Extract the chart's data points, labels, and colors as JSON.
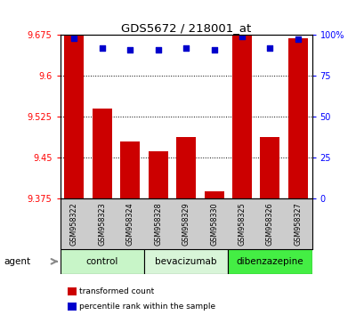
{
  "title": "GDS5672 / 218001_at",
  "samples": [
    "GSM958322",
    "GSM958323",
    "GSM958324",
    "GSM958328",
    "GSM958329",
    "GSM958330",
    "GSM958325",
    "GSM958326",
    "GSM958327"
  ],
  "bar_values": [
    9.675,
    9.54,
    9.48,
    9.462,
    9.487,
    9.388,
    9.678,
    9.487,
    9.668
  ],
  "blue_values": [
    98,
    92,
    91,
    91,
    92,
    91,
    99,
    92,
    97
  ],
  "y_min": 9.375,
  "y_max": 9.675,
  "y_ticks": [
    9.375,
    9.45,
    9.525,
    9.6,
    9.675
  ],
  "y_tick_labels": [
    "9.375",
    "9.45",
    "9.525",
    "9.6",
    "9.675"
  ],
  "right_y_ticks": [
    0,
    25,
    50,
    75,
    100
  ],
  "right_y_tick_labels": [
    "0",
    "25",
    "50",
    "75",
    "100%"
  ],
  "groups": [
    {
      "label": "control",
      "start": 0,
      "end": 3,
      "color": "#c8f5c8"
    },
    {
      "label": "bevacizumab",
      "start": 3,
      "end": 6,
      "color": "#d8f5d8"
    },
    {
      "label": "dibenzazepine",
      "start": 6,
      "end": 9,
      "color": "#44ee44"
    }
  ],
  "bar_color": "#cc0000",
  "blue_dot_color": "#0000cc",
  "bar_width": 0.7,
  "background_color": "#ffffff",
  "plot_bg_color": "#ffffff",
  "label_row_bg": "#cccccc",
  "agent_label": "agent",
  "legend_items": [
    {
      "color": "#cc0000",
      "label": "transformed count"
    },
    {
      "color": "#0000cc",
      "label": "percentile rank within the sample"
    }
  ]
}
